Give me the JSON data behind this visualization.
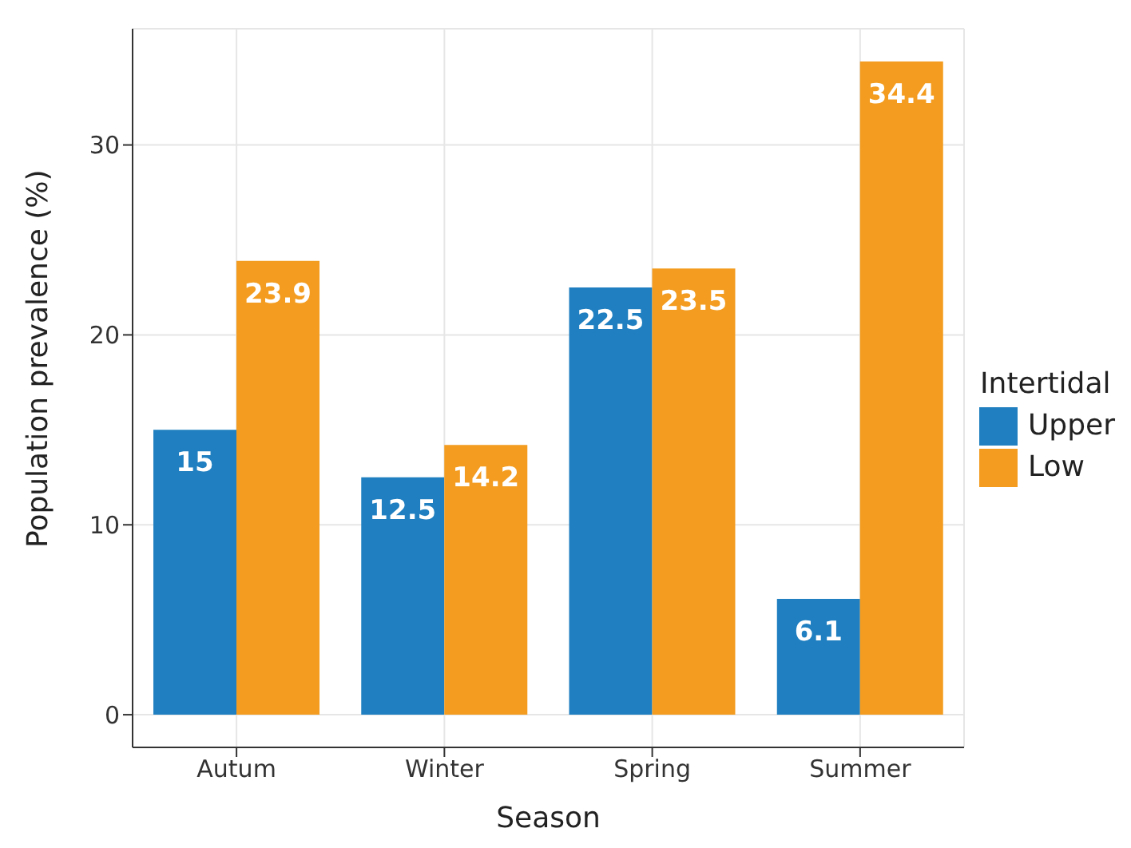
{
  "chart_data": {
    "type": "bar",
    "xlabel": "Season",
    "ylabel": "Population prevalence (%)",
    "legend_title": "Intertidal",
    "categories": [
      "Autum",
      "Winter",
      "Spring",
      "Summer"
    ],
    "series": [
      {
        "name": "Upper",
        "color": "#1f7fc0",
        "values": [
          15,
          12.5,
          22.5,
          6.1
        ]
      },
      {
        "name": "Low",
        "color": "#f39c1f",
        "values": [
          23.9,
          14.2,
          23.5,
          34.4
        ]
      }
    ],
    "ylim": [
      -1.72,
      36.12
    ],
    "yticks": [
      0,
      10,
      20,
      30
    ],
    "grid": true,
    "legend": "right",
    "data_labels": true
  }
}
